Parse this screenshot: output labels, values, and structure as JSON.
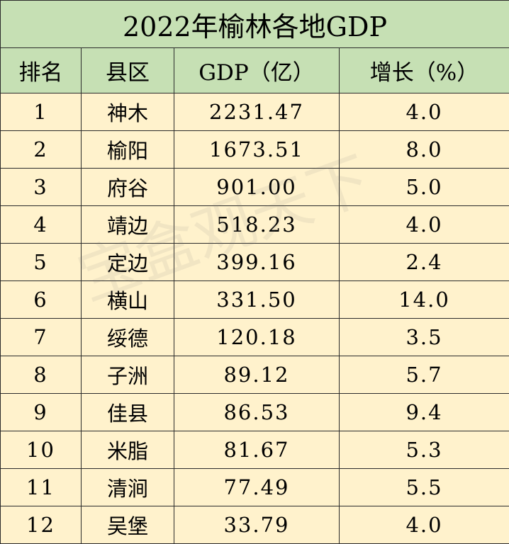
{
  "title": "2022年榆林各地GDP",
  "headers": {
    "rank": "排名",
    "county": "县区",
    "gdp": "GDP（亿）",
    "growth": "增长（%）"
  },
  "rows": [
    {
      "rank": "1",
      "county": "神木",
      "gdp": "2231.47",
      "growth": "4.0"
    },
    {
      "rank": "2",
      "county": "榆阳",
      "gdp": "1673.51",
      "growth": "8.0"
    },
    {
      "rank": "3",
      "county": "府谷",
      "gdp": "901.00",
      "growth": "5.0"
    },
    {
      "rank": "4",
      "county": "靖边",
      "gdp": "518.23",
      "growth": "4.0"
    },
    {
      "rank": "5",
      "county": "定边",
      "gdp": "399.16",
      "growth": "2.4"
    },
    {
      "rank": "6",
      "county": "横山",
      "gdp": "331.50",
      "growth": "14.0"
    },
    {
      "rank": "7",
      "county": "绥德",
      "gdp": "120.18",
      "growth": "3.5"
    },
    {
      "rank": "8",
      "county": "子洲",
      "gdp": "89.12",
      "growth": "5.7"
    },
    {
      "rank": "9",
      "county": "佳县",
      "gdp": "86.53",
      "growth": "9.4"
    },
    {
      "rank": "10",
      "county": "米脂",
      "gdp": "81.67",
      "growth": "5.3"
    },
    {
      "rank": "11",
      "county": "清涧",
      "gdp": "77.49",
      "growth": "5.5"
    },
    {
      "rank": "12",
      "county": "吴堡",
      "gdp": "33.79",
      "growth": "4.0"
    }
  ],
  "watermark": "宝盒观天下",
  "colors": {
    "header_bg": "#c6e0b4",
    "body_bg": "#fff2cc",
    "border": "#2b2b2b"
  }
}
